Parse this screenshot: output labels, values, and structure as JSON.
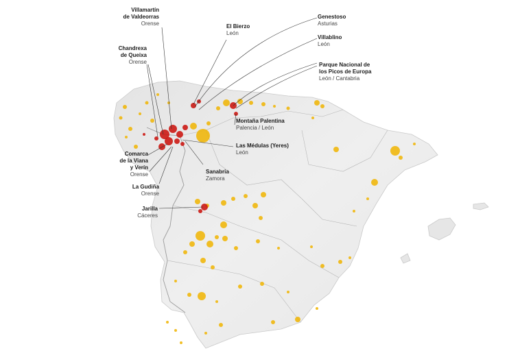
{
  "colors": {
    "major_fire": "#cc1a14",
    "minor_fire": "#f0b400",
    "land": "#ececec",
    "border": "#9a9a9a",
    "sea": "#ffffff"
  },
  "labels": [
    {
      "id": "villamartin",
      "name": "Villamartín\nde Valdeorras",
      "region": "Orense"
    },
    {
      "id": "chandrexa",
      "name": "Chandrexa\nde Queixa",
      "region": "Orense"
    },
    {
      "id": "el-bierzo",
      "name": "El Bierzo",
      "region": "León"
    },
    {
      "id": "genestoso",
      "name": "Genestoso",
      "region": "Asturias"
    },
    {
      "id": "villablino",
      "name": "Villablino",
      "region": "León"
    },
    {
      "id": "picos",
      "name": "Parque Nacional de\nlos Picos de Europa",
      "region": "León / Cantabria"
    },
    {
      "id": "montana",
      "name": "Montaña Palentina",
      "region": "Palencia / León"
    },
    {
      "id": "medulas",
      "name": "Las Médulas (Yeres)",
      "region": "León"
    },
    {
      "id": "viana",
      "name": "Comarca\nde la Viana\ny Verín",
      "region": "Orense"
    },
    {
      "id": "sanabria",
      "name": "Sanabria",
      "region": "Zamora"
    },
    {
      "id": "gudina",
      "name": "La Gudiña",
      "region": "Orense"
    },
    {
      "id": "jarilla",
      "name": "Jarilla",
      "region": "Cáceres"
    }
  ]
}
